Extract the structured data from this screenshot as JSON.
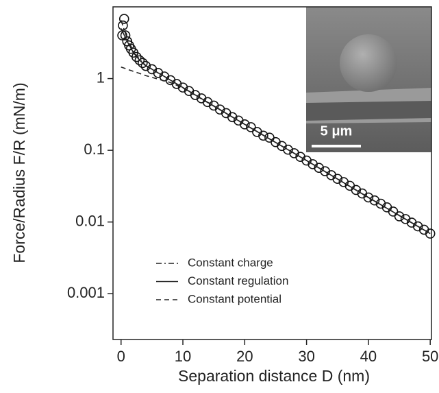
{
  "chart_data": {
    "type": "scatter",
    "xlabel": "Separation distance D (nm)",
    "ylabel": "Force/Radius F/R (mN/m)",
    "inset_scale_label": "5 μm",
    "xlim": [
      -1.3,
      50.2
    ],
    "xticks": [
      0,
      10,
      20,
      30,
      40,
      50
    ],
    "ylim": [
      0.00023,
      10
    ],
    "yticks": [
      1,
      0.1,
      0.01,
      0.001
    ],
    "log_y": true,
    "legend": "lower left",
    "x": [
      0.2,
      0.3,
      0.5,
      0.7,
      1,
      1.3,
      1.6,
      2,
      2.5,
      3,
      3.5,
      4,
      5,
      6,
      7,
      8,
      9,
      10,
      11,
      12,
      13,
      14,
      15,
      16,
      17,
      18,
      19,
      20,
      21,
      22,
      23,
      24,
      25,
      26,
      27,
      28,
      29,
      30,
      31,
      32,
      33,
      34,
      35,
      36,
      37,
      38,
      39,
      40,
      41,
      42,
      43,
      44,
      45,
      46,
      47,
      48,
      49,
      50
    ],
    "values": [
      4.0,
      5.5,
      6.8,
      4.0,
      3.3,
      2.9,
      2.6,
      2.3,
      2.0,
      1.8,
      1.65,
      1.5,
      1.35,
      1.2,
      1.07,
      0.95,
      0.84,
      0.75,
      0.67,
      0.59,
      0.53,
      0.47,
      0.42,
      0.37,
      0.33,
      0.29,
      0.26,
      0.23,
      0.21,
      0.18,
      0.16,
      0.15,
      0.13,
      0.115,
      0.102,
      0.091,
      0.081,
      0.072,
      0.064,
      0.057,
      0.051,
      0.045,
      0.04,
      0.036,
      0.032,
      0.028,
      0.025,
      0.022,
      0.02,
      0.018,
      0.016,
      0.014,
      0.012,
      0.011,
      0.0098,
      0.0087,
      0.0078,
      0.0069
    ],
    "lines": {
      "x": [
        0,
        1,
        2,
        3,
        4,
        5,
        6,
        7,
        8,
        10,
        20,
        30,
        40,
        50
      ],
      "series": [
        {
          "name": "Constant charge",
          "dash": "8,4,2,4",
          "values": [
            6.5,
            3.6,
            2.4,
            1.85,
            1.52,
            1.36,
            1.2,
            1.07,
            0.95,
            0.75,
            0.23,
            0.072,
            0.022,
            0.0069
          ]
        },
        {
          "name": "Constant regulation",
          "dash": "none",
          "values": [
            5.0,
            3.3,
            2.3,
            1.8,
            1.5,
            1.35,
            1.2,
            1.07,
            0.95,
            0.75,
            0.23,
            0.072,
            0.022,
            0.0069
          ]
        },
        {
          "name": "Constant potential",
          "dash": "7,5",
          "values": [
            1.45,
            1.35,
            1.26,
            1.18,
            1.1,
            1.04,
            0.98,
            0.93,
            0.88,
            0.74,
            0.23,
            0.072,
            0.022,
            0.0069
          ]
        }
      ]
    }
  }
}
